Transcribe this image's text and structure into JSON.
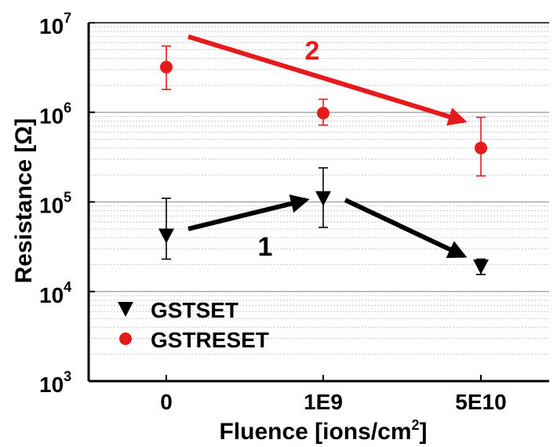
{
  "chart_data": {
    "type": "scatter",
    "xlabel": "Fluence [ions/cm",
    "xlabel_sup": "2",
    "xlabel_end": "]",
    "ylabel": "Resistance [Ω]",
    "y_scale": "log",
    "ylim": [
      1000,
      10000000
    ],
    "y_ticks": [
      {
        "base": "10",
        "exp": "3",
        "value": 1000
      },
      {
        "base": "10",
        "exp": "4",
        "value": 10000
      },
      {
        "base": "10",
        "exp": "5",
        "value": 100000
      },
      {
        "base": "10",
        "exp": "6",
        "value": 1000000
      },
      {
        "base": "10",
        "exp": "7",
        "value": 10000000
      }
    ],
    "categories": [
      "0",
      "1E9",
      "5E10"
    ],
    "grid": true,
    "legend_position": "bottom-left",
    "series": [
      {
        "name": "GSTSET",
        "marker": "triangle-down",
        "color": "#000000",
        "values": [
          42000,
          110000,
          19000
        ],
        "err_low": [
          23000,
          52000,
          15500
        ],
        "err_high": [
          110000,
          240000,
          23000
        ]
      },
      {
        "name": "GSTRESET",
        "marker": "circle",
        "color": "#e41a1c",
        "values": [
          3200000,
          980000,
          400000
        ],
        "err_low": [
          1800000,
          720000,
          195000
        ],
        "err_high": [
          5500000,
          1400000,
          880000
        ]
      }
    ],
    "annotations": [
      {
        "label": "1",
        "color": "#000000",
        "from": [
          0,
          50000
        ],
        "to": [
          1,
          105000
        ]
      },
      {
        "label": "",
        "color": "#000000",
        "from": [
          1,
          105000
        ],
        "to": [
          2,
          25000
        ]
      },
      {
        "label": "2",
        "color": "#e41a1c",
        "from": [
          0,
          7000000
        ],
        "to": [
          2,
          800000
        ]
      }
    ],
    "colors": {
      "black": "#000000",
      "red": "#e41a1c",
      "grid_major": "#9a9a9a",
      "grid_minor": "#c8c8c8"
    }
  }
}
